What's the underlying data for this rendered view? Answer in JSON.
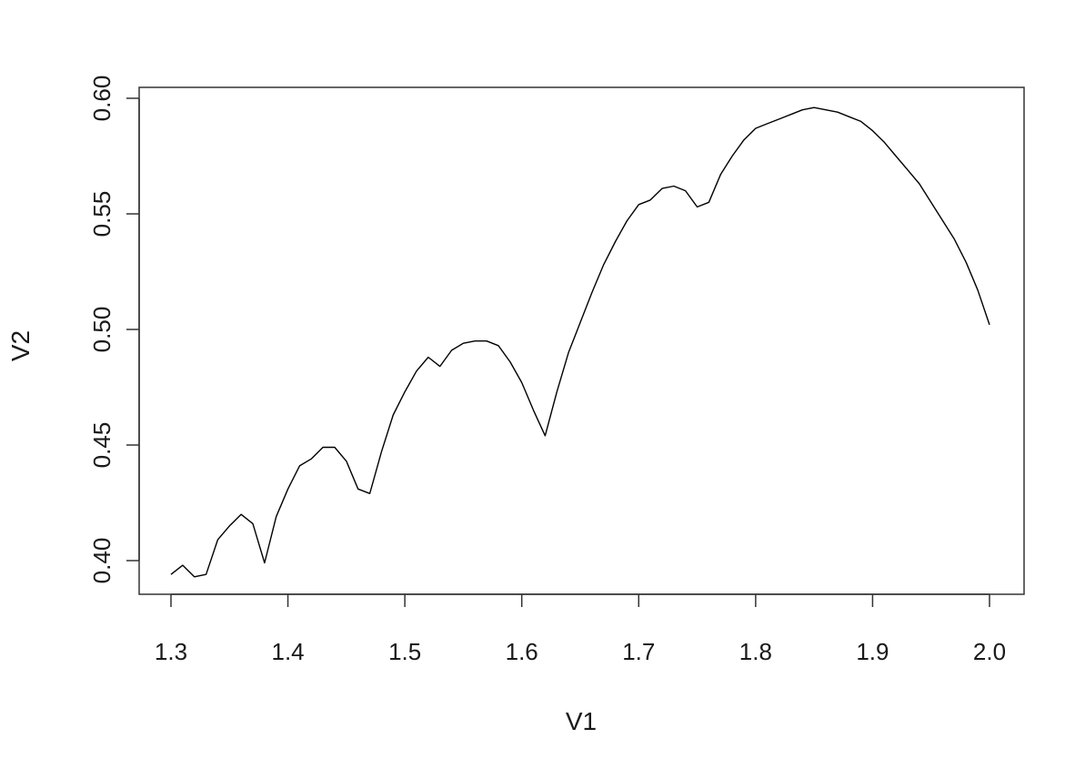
{
  "chart_data": {
    "type": "line",
    "title": "",
    "xlabel": "V1",
    "ylabel": "V2",
    "xlim": [
      1.3,
      2.0
    ],
    "ylim": [
      0.39,
      0.6
    ],
    "x_ticks": [
      1.3,
      1.4,
      1.5,
      1.6,
      1.7,
      1.8,
      1.9,
      2.0
    ],
    "x_tick_labels": [
      "1.3",
      "1.4",
      "1.5",
      "1.6",
      "1.7",
      "1.8",
      "1.9",
      "2.0"
    ],
    "y_ticks": [
      0.4,
      0.45,
      0.5,
      0.55,
      0.6
    ],
    "y_tick_labels": [
      "0.40",
      "0.45",
      "0.50",
      "0.55",
      "0.60"
    ],
    "grid": false,
    "legend": "none",
    "line_color": "#000000",
    "series": [
      {
        "x": [
          1.3,
          1.31,
          1.32,
          1.33,
          1.34,
          1.35,
          1.36,
          1.37,
          1.38,
          1.39,
          1.4,
          1.41,
          1.42,
          1.43,
          1.44,
          1.45,
          1.46,
          1.47,
          1.48,
          1.49,
          1.5,
          1.51,
          1.52,
          1.53,
          1.54,
          1.55,
          1.56,
          1.57,
          1.58,
          1.59,
          1.6,
          1.61,
          1.62,
          1.63,
          1.64,
          1.65,
          1.66,
          1.67,
          1.68,
          1.69,
          1.7,
          1.71,
          1.72,
          1.73,
          1.74,
          1.75,
          1.76,
          1.77,
          1.78,
          1.79,
          1.8,
          1.81,
          1.82,
          1.83,
          1.84,
          1.85,
          1.86,
          1.87,
          1.88,
          1.89,
          1.9,
          1.91,
          1.92,
          1.93,
          1.94,
          1.95,
          1.96,
          1.97,
          1.98,
          1.99,
          2.0
        ],
        "values": [
          0.394,
          0.398,
          0.393,
          0.394,
          0.409,
          0.415,
          0.42,
          0.416,
          0.399,
          0.419,
          0.431,
          0.441,
          0.444,
          0.449,
          0.449,
          0.443,
          0.431,
          0.429,
          0.447,
          0.463,
          0.473,
          0.482,
          0.488,
          0.484,
          0.491,
          0.494,
          0.495,
          0.495,
          0.493,
          0.486,
          0.477,
          0.465,
          0.454,
          0.473,
          0.49,
          0.503,
          0.516,
          0.528,
          0.538,
          0.547,
          0.554,
          0.556,
          0.561,
          0.562,
          0.56,
          0.553,
          0.555,
          0.567,
          0.575,
          0.582,
          0.587,
          0.589,
          0.591,
          0.593,
          0.595,
          0.596,
          0.595,
          0.594,
          0.592,
          0.59,
          0.586,
          0.581,
          0.575,
          0.569,
          0.563,
          0.555,
          0.547,
          0.539,
          0.529,
          0.517,
          0.502
        ]
      }
    ]
  }
}
